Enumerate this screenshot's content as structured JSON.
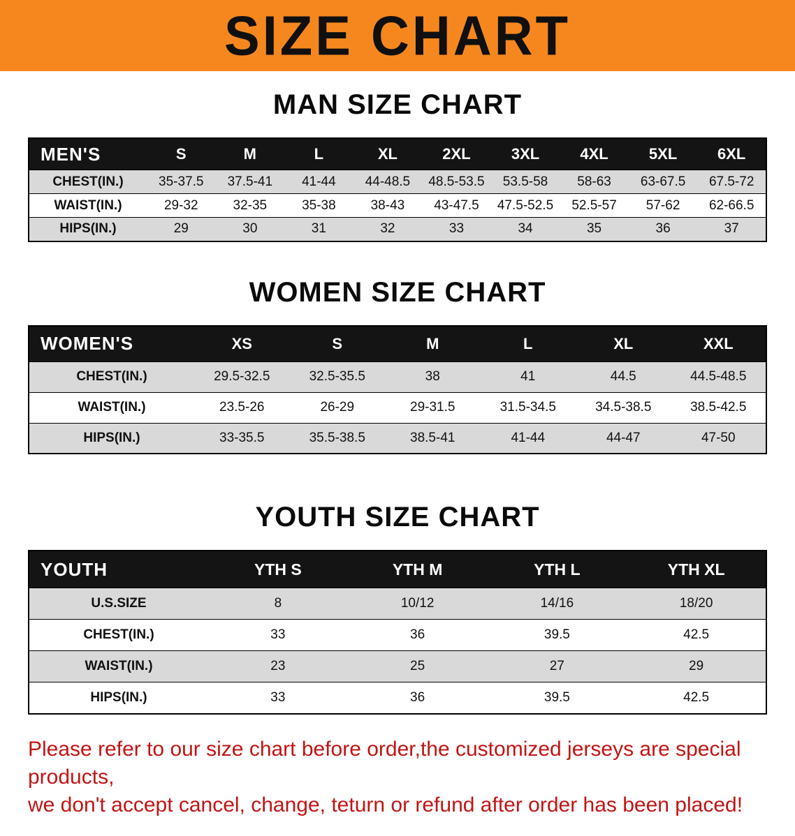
{
  "colors": {
    "banner_bg": "#f6871f",
    "table_header_bg": "#141414",
    "row_stripe": "#d9d9d9",
    "disclaimer_red": "#c21414"
  },
  "banner": {
    "title": "SIZE CHART"
  },
  "sections": [
    {
      "heading": "MAN SIZE CHART",
      "table": {
        "header": [
          "MEN'S",
          "S",
          "M",
          "L",
          "XL",
          "2XL",
          "3XL",
          "4XL",
          "5XL",
          "6XL"
        ],
        "rows": [
          {
            "label": "CHEST(IN.)",
            "values": [
              "35-37.5",
              "37.5-41",
              "41-44",
              "44-48.5",
              "48.5-53.5",
              "53.5-58",
              "58-63",
              "63-67.5",
              "67.5-72"
            ]
          },
          {
            "label": "WAIST(IN.)",
            "values": [
              "29-32",
              "32-35",
              "35-38",
              "38-43",
              "43-47.5",
              "47.5-52.5",
              "52.5-57",
              "57-62",
              "62-66.5"
            ]
          },
          {
            "label": "HIPS(IN.)",
            "values": [
              "29",
              "30",
              "31",
              "32",
              "33",
              "34",
              "35",
              "36",
              "37"
            ]
          }
        ]
      }
    },
    {
      "heading": "WOMEN SIZE CHART",
      "table": {
        "header": [
          "WOMEN'S",
          "XS",
          "S",
          "M",
          "L",
          "XL",
          "XXL"
        ],
        "rows": [
          {
            "label": "CHEST(IN.)",
            "values": [
              "29.5-32.5",
              "32.5-35.5",
              "38",
              "41",
              "44.5",
              "44.5-48.5"
            ]
          },
          {
            "label": "WAIST(IN.)",
            "values": [
              "23.5-26",
              "26-29",
              "29-31.5",
              "31.5-34.5",
              "34.5-38.5",
              "38.5-42.5"
            ]
          },
          {
            "label": "HIPS(IN.)",
            "values": [
              "33-35.5",
              "35.5-38.5",
              "38.5-41",
              "41-44",
              "44-47",
              "47-50"
            ]
          }
        ]
      }
    },
    {
      "heading": "YOUTH SIZE CHART",
      "table": {
        "header": [
          "YOUTH",
          "YTH S",
          "YTH M",
          "YTH L",
          "YTH XL"
        ],
        "rows": [
          {
            "label": "U.S.SIZE",
            "values": [
              "8",
              "10/12",
              "14/16",
              "18/20"
            ]
          },
          {
            "label": "CHEST(IN.)",
            "values": [
              "33",
              "36",
              "39.5",
              "42.5"
            ]
          },
          {
            "label": "WAIST(IN.)",
            "values": [
              "23",
              "25",
              "27",
              "29"
            ]
          },
          {
            "label": "HIPS(IN.)",
            "values": [
              "33",
              "36",
              "39.5",
              "42.5"
            ]
          }
        ]
      }
    }
  ],
  "disclaimer": {
    "line1": "Please refer to our size chart before order,the customized jerseys are special products,",
    "line2": "we don't accept cancel, change, teturn or refund after order has been placed!"
  }
}
